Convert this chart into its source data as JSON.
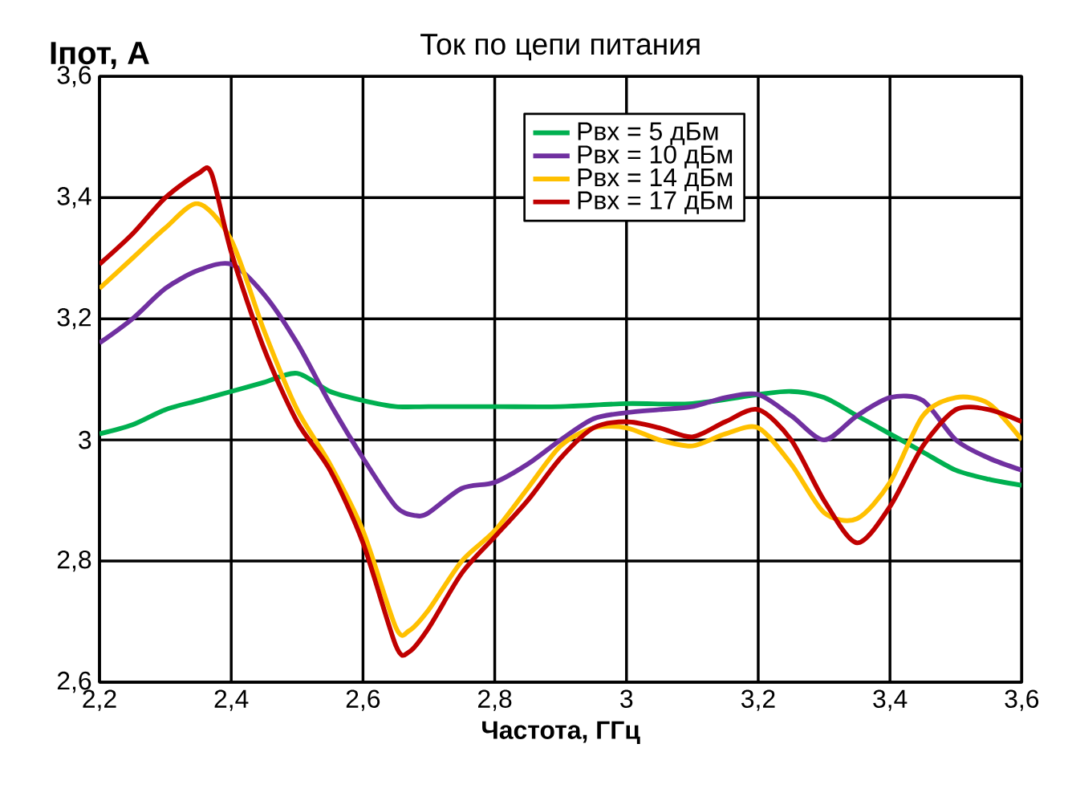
{
  "chart_data": {
    "type": "line",
    "title": "Ток по цепи питания",
    "xlabel": "Частота, ГГц",
    "ylabel": "Iпот, A",
    "marker": "none",
    "grid": true,
    "legend": "top right",
    "xlim": [
      2.2,
      3.6
    ],
    "ylim": [
      2.6,
      3.6
    ],
    "xticks": [
      {
        "value": 2.2,
        "label": "2,2"
      },
      {
        "value": 2.4,
        "label": "2,4"
      },
      {
        "value": 2.6,
        "label": "2,6"
      },
      {
        "value": 2.8,
        "label": "2,8"
      },
      {
        "value": 3,
        "label": "3"
      },
      {
        "value": 3.2,
        "label": "3,2"
      },
      {
        "value": 3.4,
        "label": "3,4"
      },
      {
        "value": 3.6,
        "label": "3,6"
      }
    ],
    "yticks": [
      {
        "value": 2.6,
        "label": "2,6"
      },
      {
        "value": 2.8,
        "label": "2,8"
      },
      {
        "value": 3,
        "label": "3"
      },
      {
        "value": 3.2,
        "label": "3,2"
      },
      {
        "value": 3.4,
        "label": "3,4"
      },
      {
        "value": 3.6,
        "label": "3,6"
      }
    ],
    "series": [
      {
        "name": "Pвх = 5 дБм",
        "color": "#00b050",
        "x": [
          2.2,
          2.25,
          2.3,
          2.35,
          2.4,
          2.45,
          2.5,
          2.55,
          2.6,
          2.65,
          2.7,
          2.8,
          2.9,
          3.0,
          3.1,
          3.2,
          3.25,
          3.3,
          3.35,
          3.4,
          3.45,
          3.5,
          3.55,
          3.6
        ],
        "values": [
          3.01,
          3.025,
          3.05,
          3.065,
          3.08,
          3.095,
          3.11,
          3.08,
          3.065,
          3.055,
          3.055,
          3.055,
          3.055,
          3.06,
          3.06,
          3.075,
          3.08,
          3.07,
          3.04,
          3.01,
          2.98,
          2.95,
          2.935,
          2.925
        ]
      },
      {
        "name": "Pвх = 10 дБм",
        "color": "#7030a0",
        "x": [
          2.2,
          2.25,
          2.3,
          2.35,
          2.4,
          2.45,
          2.5,
          2.55,
          2.6,
          2.65,
          2.68,
          2.7,
          2.75,
          2.8,
          2.85,
          2.9,
          2.95,
          3.0,
          3.05,
          3.1,
          3.15,
          3.2,
          3.25,
          3.3,
          3.35,
          3.4,
          3.45,
          3.5,
          3.55,
          3.6
        ],
        "values": [
          3.16,
          3.2,
          3.25,
          3.28,
          3.29,
          3.24,
          3.16,
          3.06,
          2.97,
          2.89,
          2.875,
          2.88,
          2.92,
          2.93,
          2.96,
          3.0,
          3.035,
          3.045,
          3.05,
          3.055,
          3.07,
          3.075,
          3.04,
          3.0,
          3.04,
          3.07,
          3.065,
          3.0,
          2.97,
          2.95
        ]
      },
      {
        "name": "Pвх = 14 дБм",
        "color": "#ffc000",
        "x": [
          2.2,
          2.25,
          2.3,
          2.35,
          2.4,
          2.45,
          2.5,
          2.55,
          2.6,
          2.65,
          2.67,
          2.7,
          2.75,
          2.8,
          2.85,
          2.9,
          2.95,
          3.0,
          3.05,
          3.1,
          3.15,
          3.2,
          3.25,
          3.3,
          3.35,
          3.4,
          3.45,
          3.5,
          3.55,
          3.6
        ],
        "values": [
          3.25,
          3.3,
          3.35,
          3.39,
          3.33,
          3.18,
          3.05,
          2.96,
          2.85,
          2.69,
          2.685,
          2.72,
          2.8,
          2.85,
          2.92,
          2.99,
          3.02,
          3.02,
          3.0,
          2.99,
          3.01,
          3.02,
          2.96,
          2.88,
          2.87,
          2.93,
          3.04,
          3.07,
          3.06,
          3.0
        ]
      },
      {
        "name": "Pвх = 17 дБм",
        "color": "#c00000",
        "x": [
          2.2,
          2.25,
          2.3,
          2.35,
          2.37,
          2.4,
          2.45,
          2.5,
          2.55,
          2.6,
          2.65,
          2.67,
          2.7,
          2.75,
          2.8,
          2.85,
          2.9,
          2.95,
          3.0,
          3.05,
          3.1,
          3.15,
          3.2,
          3.25,
          3.3,
          3.35,
          3.4,
          3.45,
          3.5,
          3.55,
          3.6
        ],
        "values": [
          3.29,
          3.34,
          3.4,
          3.44,
          3.44,
          3.31,
          3.15,
          3.03,
          2.95,
          2.83,
          2.66,
          2.65,
          2.69,
          2.78,
          2.84,
          2.9,
          2.97,
          3.02,
          3.03,
          3.02,
          3.005,
          3.03,
          3.05,
          3.0,
          2.9,
          2.83,
          2.89,
          2.99,
          3.05,
          3.05,
          3.03
        ]
      }
    ]
  }
}
